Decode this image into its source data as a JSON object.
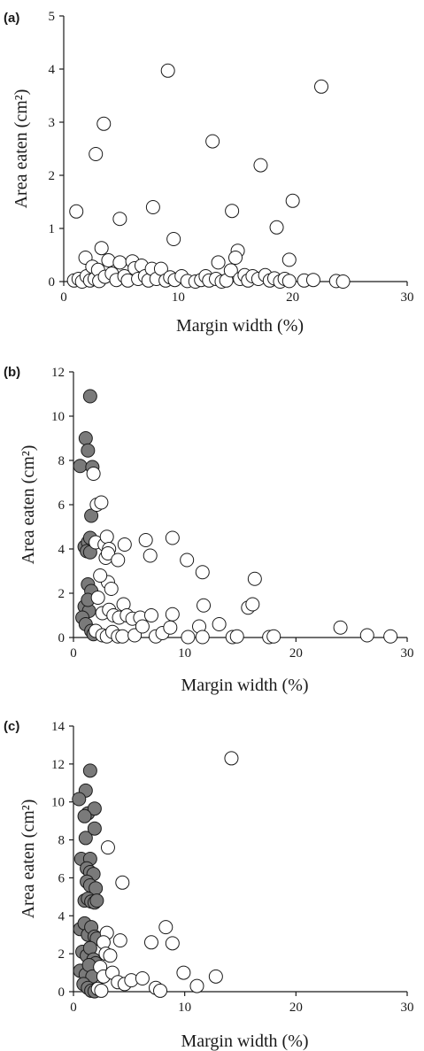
{
  "chart_data": [
    {
      "type": "scatter",
      "panel": "(a)",
      "xlabel": "Margin width (%)",
      "ylabel": "Area eaten (cm²)",
      "xlim": [
        0,
        30
      ],
      "ylim": [
        0,
        5
      ],
      "xticks": [
        0,
        10,
        20,
        30
      ],
      "yticks": [
        0,
        1,
        2,
        3,
        4,
        5
      ],
      "series": [
        {
          "style": "open",
          "points": [
            [
              1.1,
              1.32
            ],
            [
              1.9,
              0.45
            ],
            [
              2.8,
              2.4
            ],
            [
              3.5,
              2.97
            ],
            [
              3.3,
              0.63
            ],
            [
              4.9,
              1.18
            ],
            [
              7.8,
              1.4
            ],
            [
              9.1,
              3.97
            ],
            [
              9.6,
              0.8
            ],
            [
              13.0,
              2.64
            ],
            [
              13.5,
              0.36
            ],
            [
              14.7,
              1.33
            ],
            [
              15.2,
              0.58
            ],
            [
              17.2,
              2.19
            ],
            [
              18.6,
              1.02
            ],
            [
              19.7,
              0.41
            ],
            [
              20.0,
              1.52
            ],
            [
              22.5,
              3.67
            ],
            [
              0.9,
              0.02
            ],
            [
              1.3,
              0.05
            ],
            [
              1.6,
              0.0
            ],
            [
              2.0,
              0.1
            ],
            [
              2.3,
              0.02
            ],
            [
              2.5,
              0.28
            ],
            [
              2.7,
              0.05
            ],
            [
              3.0,
              0.22
            ],
            [
              3.1,
              0.01
            ],
            [
              3.6,
              0.09
            ],
            [
              3.9,
              0.4
            ],
            [
              4.2,
              0.15
            ],
            [
              4.6,
              0.03
            ],
            [
              4.9,
              0.36
            ],
            [
              5.3,
              0.1
            ],
            [
              5.6,
              0.02
            ],
            [
              6.0,
              0.38
            ],
            [
              6.2,
              0.25
            ],
            [
              6.5,
              0.05
            ],
            [
              6.8,
              0.3
            ],
            [
              7.1,
              0.1
            ],
            [
              7.4,
              0.02
            ],
            [
              7.7,
              0.24
            ],
            [
              8.1,
              0.05
            ],
            [
              8.5,
              0.24
            ],
            [
              8.9,
              0.02
            ],
            [
              9.3,
              0.08
            ],
            [
              9.7,
              0.03
            ],
            [
              10.3,
              0.1
            ],
            [
              10.8,
              0.01
            ],
            [
              11.5,
              0.0
            ],
            [
              12.0,
              0.03
            ],
            [
              12.4,
              0.1
            ],
            [
              12.7,
              0.02
            ],
            [
              13.3,
              0.05
            ],
            [
              13.8,
              0.0
            ],
            [
              14.2,
              0.02
            ],
            [
              14.6,
              0.21
            ],
            [
              15.0,
              0.45
            ],
            [
              15.4,
              0.05
            ],
            [
              15.8,
              0.12
            ],
            [
              16.1,
              0.02
            ],
            [
              16.5,
              0.1
            ],
            [
              17.0,
              0.05
            ],
            [
              17.6,
              0.12
            ],
            [
              18.0,
              0.02
            ],
            [
              18.4,
              0.06
            ],
            [
              18.9,
              0.0
            ],
            [
              19.3,
              0.05
            ],
            [
              19.7,
              0.01
            ],
            [
              21.0,
              0.02
            ],
            [
              21.8,
              0.03
            ],
            [
              23.8,
              0.01
            ],
            [
              24.4,
              0.0
            ]
          ]
        }
      ]
    },
    {
      "type": "scatter",
      "panel": "(b)",
      "xlabel": "Margin width (%)",
      "ylabel": "Area eaten (cm²)",
      "xlim": [
        0,
        30
      ],
      "ylim": [
        0,
        12
      ],
      "xticks": [
        0,
        10,
        20,
        30
      ],
      "yticks": [
        0,
        2,
        4,
        6,
        8,
        10,
        12
      ],
      "series": [
        {
          "style": "filled",
          "points": [
            [
              1.5,
              10.9
            ],
            [
              1.1,
              9.0
            ],
            [
              1.3,
              8.45
            ],
            [
              0.6,
              7.75
            ],
            [
              1.7,
              7.7
            ],
            [
              1.6,
              5.5
            ],
            [
              1.0,
              4.1
            ],
            [
              1.3,
              4.3
            ],
            [
              1.5,
              4.5
            ],
            [
              1.2,
              3.9
            ],
            [
              1.5,
              3.85
            ],
            [
              1.3,
              2.4
            ],
            [
              1.6,
              2.1
            ],
            [
              1.0,
              1.4
            ],
            [
              1.4,
              1.2
            ],
            [
              0.8,
              0.9
            ],
            [
              1.1,
              0.6
            ],
            [
              1.6,
              0.3
            ],
            [
              1.8,
              0.15
            ],
            [
              1.3,
              1.7
            ]
          ]
        },
        {
          "style": "open",
          "points": [
            [
              1.8,
              7.4
            ],
            [
              2.1,
              6.0
            ],
            [
              2.5,
              6.1
            ],
            [
              2.0,
              4.3
            ],
            [
              2.8,
              4.2
            ],
            [
              3.0,
              4.55
            ],
            [
              3.2,
              4.0
            ],
            [
              2.9,
              3.6
            ],
            [
              3.1,
              3.8
            ],
            [
              4.0,
              3.5
            ],
            [
              4.6,
              4.2
            ],
            [
              6.5,
              4.4
            ],
            [
              6.9,
              3.7
            ],
            [
              8.9,
              4.5
            ],
            [
              10.2,
              3.5
            ],
            [
              11.6,
              2.95
            ],
            [
              16.3,
              2.65
            ],
            [
              3.1,
              2.5
            ],
            [
              3.4,
              2.2
            ],
            [
              2.4,
              2.8
            ],
            [
              2.2,
              1.8
            ],
            [
              2.6,
              1.1
            ],
            [
              3.2,
              1.25
            ],
            [
              3.6,
              1.0
            ],
            [
              4.1,
              0.9
            ],
            [
              4.5,
              1.5
            ],
            [
              4.8,
              1.0
            ],
            [
              5.3,
              0.85
            ],
            [
              6.0,
              0.9
            ],
            [
              7.0,
              1.0
            ],
            [
              8.9,
              1.05
            ],
            [
              11.7,
              1.45
            ],
            [
              15.7,
              1.35
            ],
            [
              16.1,
              1.5
            ],
            [
              2.0,
              0.3
            ],
            [
              2.6,
              0.1
            ],
            [
              3.0,
              0.05
            ],
            [
              3.5,
              0.25
            ],
            [
              4.0,
              0.05
            ],
            [
              4.4,
              0.05
            ],
            [
              5.5,
              0.1
            ],
            [
              6.2,
              0.5
            ],
            [
              7.4,
              0.05
            ],
            [
              8.0,
              0.2
            ],
            [
              8.7,
              0.45
            ],
            [
              10.3,
              0.02
            ],
            [
              11.3,
              0.5
            ],
            [
              11.6,
              0.02
            ],
            [
              13.1,
              0.6
            ],
            [
              14.3,
              0.02
            ],
            [
              14.7,
              0.05
            ],
            [
              17.6,
              0.02
            ],
            [
              18.0,
              0.05
            ],
            [
              24.0,
              0.45
            ],
            [
              26.4,
              0.1
            ],
            [
              28.5,
              0.05
            ]
          ]
        }
      ]
    },
    {
      "type": "scatter",
      "panel": "(c)",
      "xlabel": "Margin width (%)",
      "ylabel": "Area eaten (cm²)",
      "xlim": [
        0,
        30
      ],
      "ylim": [
        0,
        14
      ],
      "xticks": [
        0,
        10,
        20,
        30
      ],
      "yticks": [
        0,
        2,
        4,
        6,
        8,
        10,
        12,
        14
      ],
      "series": [
        {
          "style": "filled",
          "points": [
            [
              1.5,
              11.65
            ],
            [
              1.1,
              10.6
            ],
            [
              0.5,
              10.15
            ],
            [
              1.3,
              9.4
            ],
            [
              1.9,
              9.65
            ],
            [
              1.0,
              9.25
            ],
            [
              1.1,
              8.1
            ],
            [
              1.9,
              8.6
            ],
            [
              0.7,
              7.0
            ],
            [
              1.5,
              7.0
            ],
            [
              1.2,
              6.5
            ],
            [
              1.5,
              6.3
            ],
            [
              1.8,
              6.2
            ],
            [
              1.2,
              5.8
            ],
            [
              1.5,
              5.6
            ],
            [
              2.0,
              5.45
            ],
            [
              1.0,
              4.8
            ],
            [
              1.3,
              4.9
            ],
            [
              1.6,
              4.75
            ],
            [
              1.9,
              4.7
            ],
            [
              2.1,
              4.8
            ],
            [
              0.6,
              3.3
            ],
            [
              1.0,
              3.6
            ],
            [
              1.3,
              3.0
            ],
            [
              1.6,
              3.4
            ],
            [
              1.9,
              2.9
            ],
            [
              2.1,
              2.8
            ],
            [
              0.8,
              2.1
            ],
            [
              1.2,
              1.9
            ],
            [
              1.5,
              2.3
            ],
            [
              1.8,
              1.7
            ],
            [
              2.0,
              1.5
            ],
            [
              0.6,
              1.1
            ],
            [
              1.1,
              0.9
            ],
            [
              1.4,
              1.4
            ],
            [
              1.7,
              0.8
            ],
            [
              0.9,
              0.4
            ],
            [
              1.3,
              0.2
            ],
            [
              1.6,
              0.05
            ],
            [
              1.9,
              0.02
            ]
          ]
        },
        {
          "style": "open",
          "points": [
            [
              3.1,
              7.6
            ],
            [
              4.4,
              5.75
            ],
            [
              14.2,
              12.3
            ],
            [
              3.0,
              3.1
            ],
            [
              2.7,
              2.6
            ],
            [
              2.9,
              2.0
            ],
            [
              3.3,
              1.9
            ],
            [
              4.2,
              2.7
            ],
            [
              7.0,
              2.6
            ],
            [
              8.3,
              3.4
            ],
            [
              8.9,
              2.55
            ],
            [
              2.4,
              1.3
            ],
            [
              2.7,
              0.8
            ],
            [
              3.5,
              1.0
            ],
            [
              4.0,
              0.5
            ],
            [
              4.6,
              0.4
            ],
            [
              5.2,
              0.6
            ],
            [
              6.2,
              0.7
            ],
            [
              7.4,
              0.2
            ],
            [
              7.8,
              0.05
            ],
            [
              9.9,
              1.0
            ],
            [
              11.1,
              0.3
            ],
            [
              12.8,
              0.8
            ],
            [
              2.2,
              0.15
            ],
            [
              2.5,
              0.05
            ]
          ]
        }
      ]
    }
  ]
}
